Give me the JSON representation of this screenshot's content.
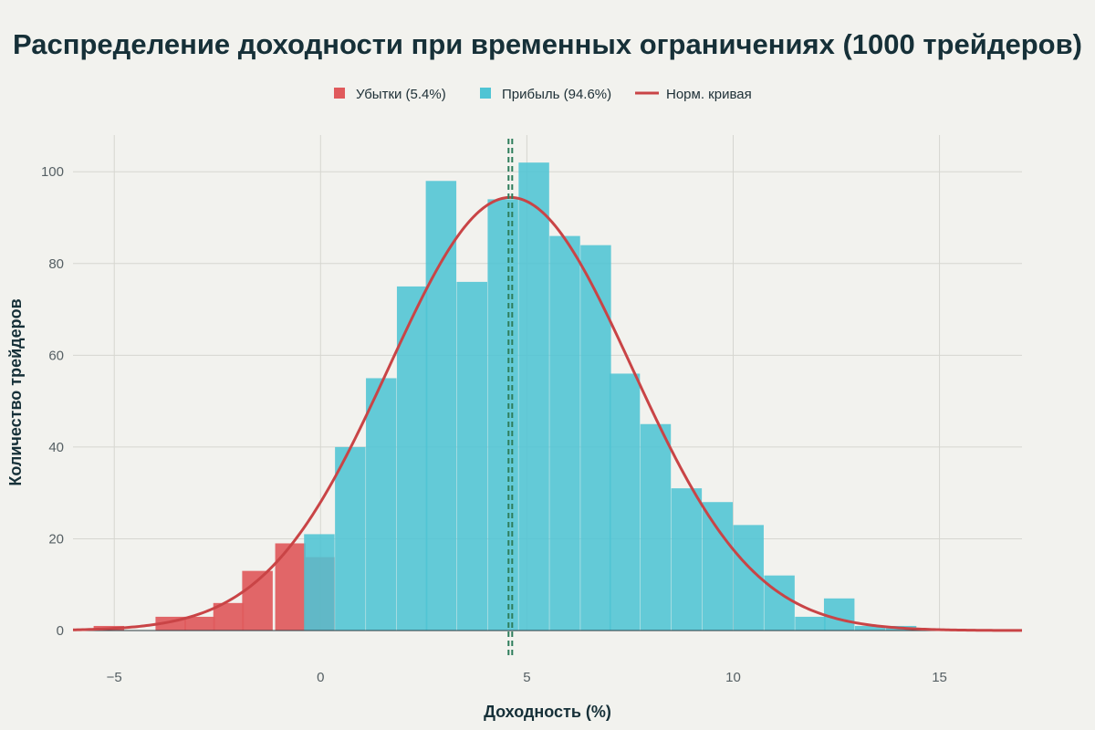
{
  "chart_data": {
    "type": "bar",
    "title": "Распределение доходности при временных ограничениях (1000 трейдеров)",
    "xlabel": "Доходность (%)",
    "ylabel": "Количество трейдеров",
    "xlim": [
      -6,
      17
    ],
    "ylim": [
      0,
      108
    ],
    "xticks": [
      -5,
      0,
      5,
      10,
      15
    ],
    "yticks": [
      0,
      20,
      40,
      60,
      80,
      100
    ],
    "xtick_labels": [
      "−5",
      "0",
      "5",
      "10",
      "15"
    ],
    "ytick_labels": [
      "0",
      "20",
      "40",
      "60",
      "80",
      "100"
    ],
    "grid": true,
    "legend_position": "top-center",
    "colors": {
      "losses": "#e05a5c",
      "profit": "#4fc4d4",
      "curve": "#c94446",
      "mean_line": "#2e7d5b",
      "background": "#f2f2ee"
    },
    "series": [
      {
        "name": "Убытки (5.4%)",
        "bin_width": 0.74,
        "bins": [
          {
            "x0": -5.5,
            "value": 1
          },
          {
            "x0": -4.0,
            "value": 3
          },
          {
            "x0": -3.3,
            "value": 3
          },
          {
            "x0": -2.6,
            "value": 6
          },
          {
            "x0": -1.9,
            "value": 13
          },
          {
            "x0": -1.1,
            "value": 19
          },
          {
            "x0": -0.4,
            "value": 16
          }
        ]
      },
      {
        "name": "Прибыль (94.6%)",
        "bin_width": 0.74,
        "bins": [
          {
            "x0": -0.4,
            "value": 21
          },
          {
            "x0": 0.35,
            "value": 40
          },
          {
            "x0": 1.1,
            "value": 55
          },
          {
            "x0": 1.85,
            "value": 75
          },
          {
            "x0": 2.55,
            "value": 98
          },
          {
            "x0": 3.3,
            "value": 76
          },
          {
            "x0": 4.05,
            "value": 94
          },
          {
            "x0": 4.8,
            "value": 102
          },
          {
            "x0": 5.55,
            "value": 86
          },
          {
            "x0": 6.3,
            "value": 84
          },
          {
            "x0": 7.0,
            "value": 56
          },
          {
            "x0": 7.75,
            "value": 45
          },
          {
            "x0": 8.5,
            "value": 31
          },
          {
            "x0": 9.25,
            "value": 28
          },
          {
            "x0": 10.0,
            "value": 23
          },
          {
            "x0": 10.75,
            "value": 12
          },
          {
            "x0": 11.5,
            "value": 3
          },
          {
            "x0": 12.2,
            "value": 7
          },
          {
            "x0": 12.95,
            "value": 1
          },
          {
            "x0": 13.7,
            "value": 1
          }
        ]
      },
      {
        "name": "Норм. кривая",
        "type": "line",
        "mean": 4.6,
        "std": 2.95,
        "peak": 94.4
      }
    ],
    "mean_line_x": 4.6
  }
}
